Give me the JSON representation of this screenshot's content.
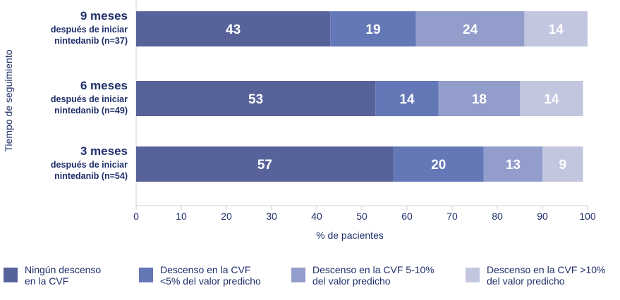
{
  "chart_data": {
    "type": "bar",
    "orientation": "horizontal",
    "stacked": true,
    "ylabel": "Tiempo de seguimiento",
    "xlabel": "% de pacientes",
    "xlim": [
      0,
      100
    ],
    "xticks": [
      "0",
      "10",
      "20",
      "30",
      "40",
      "50",
      "60",
      "70",
      "80",
      "90",
      "100"
    ],
    "categories": [
      {
        "main": "9 meses",
        "sub1": "después de iniciar",
        "sub2": "nintedanib (n=37)"
      },
      {
        "main": "6 meses",
        "sub1": "después de iniciar",
        "sub2": "nintedanib (n=49)"
      },
      {
        "main": "3 meses",
        "sub1": "después de iniciar",
        "sub2": "nintedanib (n=54)"
      }
    ],
    "series": [
      {
        "name": "Ningún descenso en la CVF",
        "legend_lines": [
          "Ningún descenso",
          "en la CVF"
        ],
        "color": "#57629a",
        "values": [
          43,
          53,
          57
        ]
      },
      {
        "name": "Descenso en la CVF <5% del valor predicho",
        "legend_lines": [
          "Descenso en la CVF",
          "<5% del valor predicho"
        ],
        "color": "#6477b7",
        "values": [
          19,
          14,
          20
        ]
      },
      {
        "name": "Descenso en la CVF 5-10% del valor predicho",
        "legend_lines": [
          "Descenso en la CVF 5-10%",
          "del valor predicho"
        ],
        "color": "#929dcb",
        "values": [
          24,
          18,
          13
        ]
      },
      {
        "name": "Descenso en la CVF >10% del valor predicho",
        "legend_lines": [
          "Descenso en la CVF >10%",
          "del valor predicho"
        ],
        "color": "#c2c6de",
        "values": [
          14,
          14,
          9
        ]
      }
    ],
    "bar_labels": [
      [
        "43",
        "19",
        "24",
        "14"
      ],
      [
        "53",
        "14",
        "18",
        "14"
      ],
      [
        "57",
        "20",
        "13",
        "9"
      ]
    ],
    "grid": false,
    "legend_position": "bottom"
  }
}
